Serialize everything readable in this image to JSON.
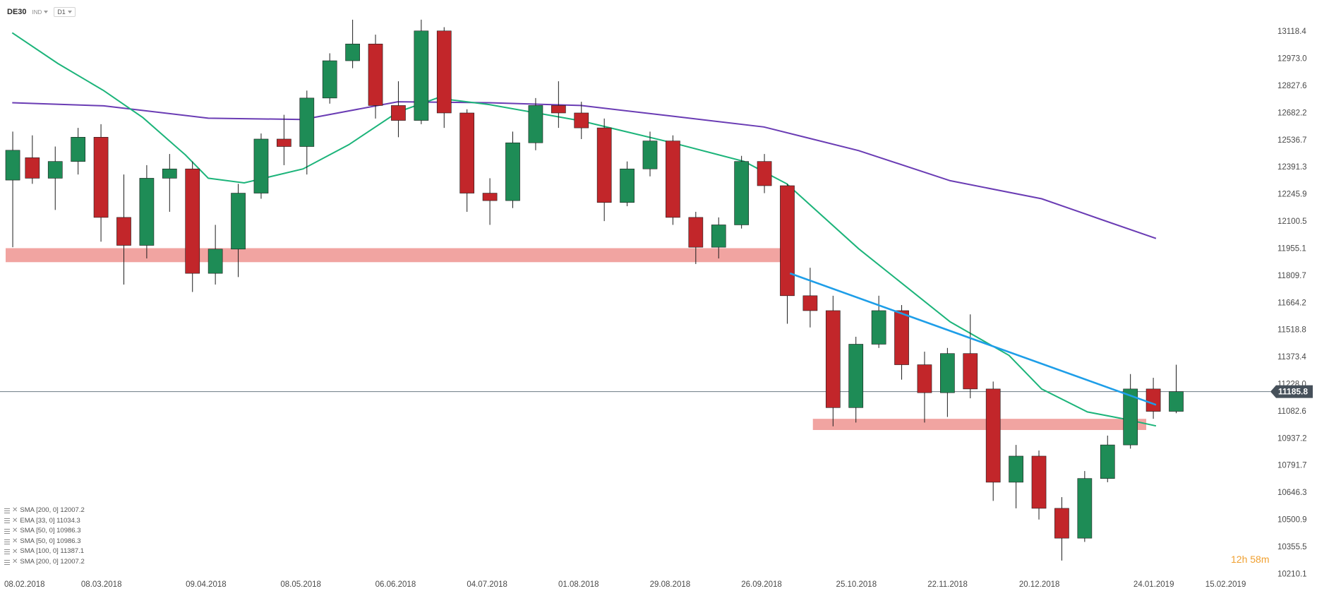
{
  "header": {
    "symbol": "DE30",
    "type_label": "IND",
    "timeframe": "D1"
  },
  "price_badge": {
    "value": "11185.8",
    "price": 11185.8,
    "color": "#46505a"
  },
  "countdown": {
    "text": "12h 58m"
  },
  "legend": [
    {
      "text": "SMA [200, 0] 12007.2"
    },
    {
      "text": "EMA [33, 0] 11034.3"
    },
    {
      "text": "SMA [50, 0] 10986.3"
    },
    {
      "text": "SMA [50, 0] 10986.3"
    },
    {
      "text": "SMA [100, 0] 11387.1"
    },
    {
      "text": "SMA [200, 0] 12007.2"
    }
  ],
  "colors": {
    "bull": "#1e8c56",
    "bear": "#c2262a",
    "zone": "#f09f9c",
    "sma200": "#6a3cb4",
    "ema": "#1cb47a",
    "trend": "#1e9ee8"
  },
  "chart_data": {
    "type": "candlestick",
    "title": "",
    "y_ticks": [
      "13118.4",
      "12973.0",
      "12827.6",
      "12682.2",
      "12536.7",
      "12391.3",
      "12245.9",
      "12100.5",
      "11955.1",
      "11809.7",
      "11664.2",
      "11518.8",
      "11373.4",
      "11228.0",
      "11082.6",
      "10937.2",
      "10791.7",
      "10646.3",
      "10500.9",
      "10355.5",
      "10210.1"
    ],
    "ylim": [
      10200,
      13210
    ],
    "x_ticks": [
      "08.02.2018",
      "08.03.2018",
      "09.04.2018",
      "08.05.2018",
      "06.06.2018",
      "04.07.2018",
      "01.08.2018",
      "29.08.2018",
      "26.09.2018",
      "25.10.2018",
      "22.11.2018",
      "20.12.2018",
      "24.01.2019",
      "15.02.2019"
    ],
    "xlim": [
      "2018-02-06",
      "2019-02-28"
    ],
    "support_zones": [
      {
        "from": "2018-02-06",
        "to": "2018-10-03",
        "low": 11880,
        "high": 11955
      },
      {
        "from": "2018-10-11",
        "to": "2019-01-21",
        "low": 10980,
        "high": 11040
      }
    ],
    "trendline": {
      "from": {
        "date": "2018-10-04",
        "value": 11820
      },
      "to": {
        "date": "2019-01-24",
        "value": 11115
      }
    },
    "last_price": 11185.8,
    "sma200": [
      [
        "2018-02-08",
        12735
      ],
      [
        "2018-03-08",
        12718
      ],
      [
        "2018-04-09",
        12652
      ],
      [
        "2018-05-08",
        12645
      ],
      [
        "2018-06-06",
        12740
      ],
      [
        "2018-07-04",
        12735
      ],
      [
        "2018-08-01",
        12720
      ],
      [
        "2018-08-29",
        12663
      ],
      [
        "2018-09-26",
        12605
      ],
      [
        "2018-10-25",
        12478
      ],
      [
        "2018-11-22",
        12317
      ],
      [
        "2018-12-20",
        12220
      ],
      [
        "2019-01-07",
        12110
      ],
      [
        "2019-01-24",
        12007
      ]
    ],
    "ema": [
      [
        "2018-02-08",
        13110
      ],
      [
        "2018-02-22",
        12945
      ],
      [
        "2018-03-08",
        12800
      ],
      [
        "2018-03-20",
        12655
      ],
      [
        "2018-04-02",
        12455
      ],
      [
        "2018-04-09",
        12330
      ],
      [
        "2018-04-20",
        12305
      ],
      [
        "2018-05-08",
        12380
      ],
      [
        "2018-05-22",
        12510
      ],
      [
        "2018-06-06",
        12685
      ],
      [
        "2018-06-18",
        12760
      ],
      [
        "2018-07-04",
        12725
      ],
      [
        "2018-08-01",
        12638
      ],
      [
        "2018-08-29",
        12520
      ],
      [
        "2018-09-20",
        12420
      ],
      [
        "2018-10-03",
        12300
      ],
      [
        "2018-10-25",
        11952
      ],
      [
        "2018-11-22",
        11560
      ],
      [
        "2018-12-10",
        11380
      ],
      [
        "2018-12-20",
        11200
      ],
      [
        "2019-01-03",
        11077
      ],
      [
        "2019-01-14",
        11040
      ],
      [
        "2019-01-24",
        11002
      ]
    ],
    "candles": [
      {
        "date": "2018-02-06",
        "open": 12320,
        "high": 12580,
        "low": 11960,
        "close": 12480
      },
      {
        "date": "2018-02-12",
        "open": 12440,
        "high": 12560,
        "low": 12300,
        "close": 12330
      },
      {
        "date": "2018-02-19",
        "open": 12330,
        "high": 12500,
        "low": 12160,
        "close": 12420
      },
      {
        "date": "2018-02-26",
        "open": 12420,
        "high": 12600,
        "low": 12350,
        "close": 12550
      },
      {
        "date": "2018-03-05",
        "open": 12550,
        "high": 12620,
        "low": 11990,
        "close": 12120
      },
      {
        "date": "2018-03-12",
        "open": 12120,
        "high": 12350,
        "low": 11760,
        "close": 11970
      },
      {
        "date": "2018-03-19",
        "open": 11970,
        "high": 12400,
        "low": 11900,
        "close": 12330
      },
      {
        "date": "2018-03-26",
        "open": 12330,
        "high": 12460,
        "low": 12150,
        "close": 12380
      },
      {
        "date": "2018-04-02",
        "open": 12380,
        "high": 12420,
        "low": 11720,
        "close": 11820
      },
      {
        "date": "2018-04-09",
        "open": 11820,
        "high": 12080,
        "low": 11760,
        "close": 11950
      },
      {
        "date": "2018-04-16",
        "open": 11950,
        "high": 12300,
        "low": 11800,
        "close": 12250
      },
      {
        "date": "2018-04-23",
        "open": 12250,
        "high": 12570,
        "low": 12220,
        "close": 12540
      },
      {
        "date": "2018-04-30",
        "open": 12540,
        "high": 12670,
        "low": 12400,
        "close": 12500
      },
      {
        "date": "2018-05-07",
        "open": 12500,
        "high": 12800,
        "low": 12350,
        "close": 12760
      },
      {
        "date": "2018-05-14",
        "open": 12760,
        "high": 13000,
        "low": 12730,
        "close": 12960
      },
      {
        "date": "2018-05-21",
        "open": 12960,
        "high": 13180,
        "low": 12920,
        "close": 13050
      },
      {
        "date": "2018-05-28",
        "open": 13050,
        "high": 13100,
        "low": 12650,
        "close": 12720
      },
      {
        "date": "2018-06-04",
        "open": 12720,
        "high": 12850,
        "low": 12550,
        "close": 12640
      },
      {
        "date": "2018-06-11",
        "open": 12640,
        "high": 13180,
        "low": 12620,
        "close": 13120
      },
      {
        "date": "2018-06-18",
        "open": 13120,
        "high": 13140,
        "low": 12600,
        "close": 12680
      },
      {
        "date": "2018-06-25",
        "open": 12680,
        "high": 12700,
        "low": 12150,
        "close": 12250
      },
      {
        "date": "2018-07-02",
        "open": 12250,
        "high": 12330,
        "low": 12080,
        "close": 12210
      },
      {
        "date": "2018-07-09",
        "open": 12210,
        "high": 12580,
        "low": 12170,
        "close": 12520
      },
      {
        "date": "2018-07-16",
        "open": 12520,
        "high": 12760,
        "low": 12480,
        "close": 12720
      },
      {
        "date": "2018-07-23",
        "open": 12720,
        "high": 12850,
        "low": 12600,
        "close": 12680
      },
      {
        "date": "2018-07-30",
        "open": 12680,
        "high": 12740,
        "low": 12540,
        "close": 12600
      },
      {
        "date": "2018-08-06",
        "open": 12600,
        "high": 12650,
        "low": 12100,
        "close": 12200
      },
      {
        "date": "2018-08-13",
        "open": 12200,
        "high": 12420,
        "low": 12180,
        "close": 12380
      },
      {
        "date": "2018-08-20",
        "open": 12380,
        "high": 12580,
        "low": 12340,
        "close": 12530
      },
      {
        "date": "2018-08-27",
        "open": 12530,
        "high": 12560,
        "low": 12080,
        "close": 12120
      },
      {
        "date": "2018-09-03",
        "open": 12120,
        "high": 12150,
        "low": 11870,
        "close": 11960
      },
      {
        "date": "2018-09-10",
        "open": 11960,
        "high": 12120,
        "low": 11900,
        "close": 12080
      },
      {
        "date": "2018-09-17",
        "open": 12080,
        "high": 12450,
        "low": 12060,
        "close": 12420
      },
      {
        "date": "2018-09-24",
        "open": 12420,
        "high": 12460,
        "low": 12250,
        "close": 12290
      },
      {
        "date": "2018-10-01",
        "open": 12290,
        "high": 12300,
        "low": 11550,
        "close": 11700
      },
      {
        "date": "2018-10-08",
        "open": 11700,
        "high": 11850,
        "low": 11530,
        "close": 11620
      },
      {
        "date": "2018-10-15",
        "open": 11620,
        "high": 11700,
        "low": 11000,
        "close": 11100
      },
      {
        "date": "2018-10-22",
        "open": 11100,
        "high": 11480,
        "low": 11020,
        "close": 11440
      },
      {
        "date": "2018-10-29",
        "open": 11440,
        "high": 11700,
        "low": 11420,
        "close": 11620
      },
      {
        "date": "2018-11-05",
        "open": 11620,
        "high": 11650,
        "low": 11250,
        "close": 11330
      },
      {
        "date": "2018-11-12",
        "open": 11330,
        "high": 11400,
        "low": 11020,
        "close": 11180
      },
      {
        "date": "2018-11-19",
        "open": 11180,
        "high": 11420,
        "low": 11050,
        "close": 11390
      },
      {
        "date": "2018-11-26",
        "open": 11390,
        "high": 11600,
        "low": 11150,
        "close": 11200
      },
      {
        "date": "2018-12-03",
        "open": 11200,
        "high": 11240,
        "low": 10600,
        "close": 10700
      },
      {
        "date": "2018-12-10",
        "open": 10700,
        "high": 10900,
        "low": 10560,
        "close": 10840
      },
      {
        "date": "2018-12-17",
        "open": 10840,
        "high": 10870,
        "low": 10500,
        "close": 10560
      },
      {
        "date": "2018-12-24",
        "open": 10560,
        "high": 10620,
        "low": 10280,
        "close": 10400
      },
      {
        "date": "2018-12-31",
        "open": 10400,
        "high": 10760,
        "low": 10380,
        "close": 10720
      },
      {
        "date": "2019-01-07",
        "open": 10720,
        "high": 10950,
        "low": 10700,
        "close": 10900
      },
      {
        "date": "2019-01-14",
        "open": 10900,
        "high": 11280,
        "low": 10880,
        "close": 11200
      },
      {
        "date": "2019-01-21",
        "open": 11200,
        "high": 11260,
        "low": 11040,
        "close": 11080
      },
      {
        "date": "2019-01-28",
        "open": 11080,
        "high": 11330,
        "low": 11070,
        "close": 11185.8
      }
    ]
  }
}
